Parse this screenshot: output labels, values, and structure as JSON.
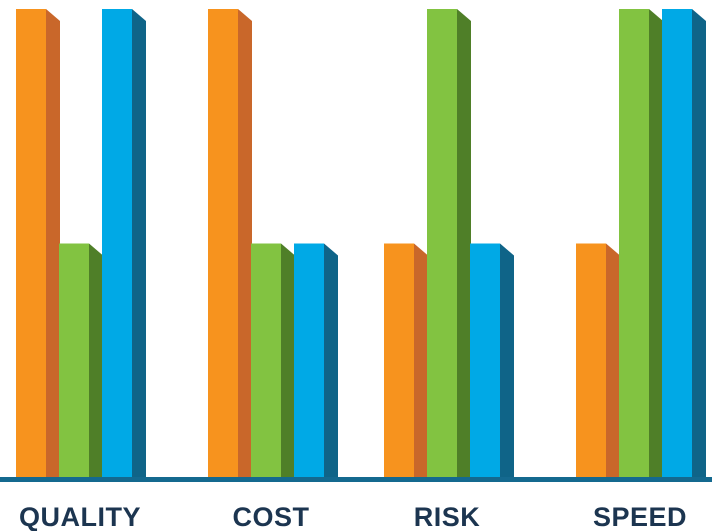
{
  "chart_data": {
    "type": "bar",
    "title": "",
    "xlabel": "",
    "ylabel": "",
    "categories": [
      "QUALITY",
      "COST",
      "RISK",
      "SPEED"
    ],
    "ylim": [
      0,
      2
    ],
    "grid": false,
    "legend": "none",
    "series": [
      {
        "color": "#f7931e",
        "side_color": "#c9672a",
        "values": [
          2,
          2,
          1,
          1
        ]
      },
      {
        "color": "#82c341",
        "side_color": "#4f7f28",
        "values": [
          1,
          1,
          2,
          2
        ]
      },
      {
        "color": "#00a9e6",
        "side_color": "#0f6488",
        "values": [
          2,
          1,
          1,
          2
        ]
      }
    ],
    "baseline_color": "#14698f"
  }
}
